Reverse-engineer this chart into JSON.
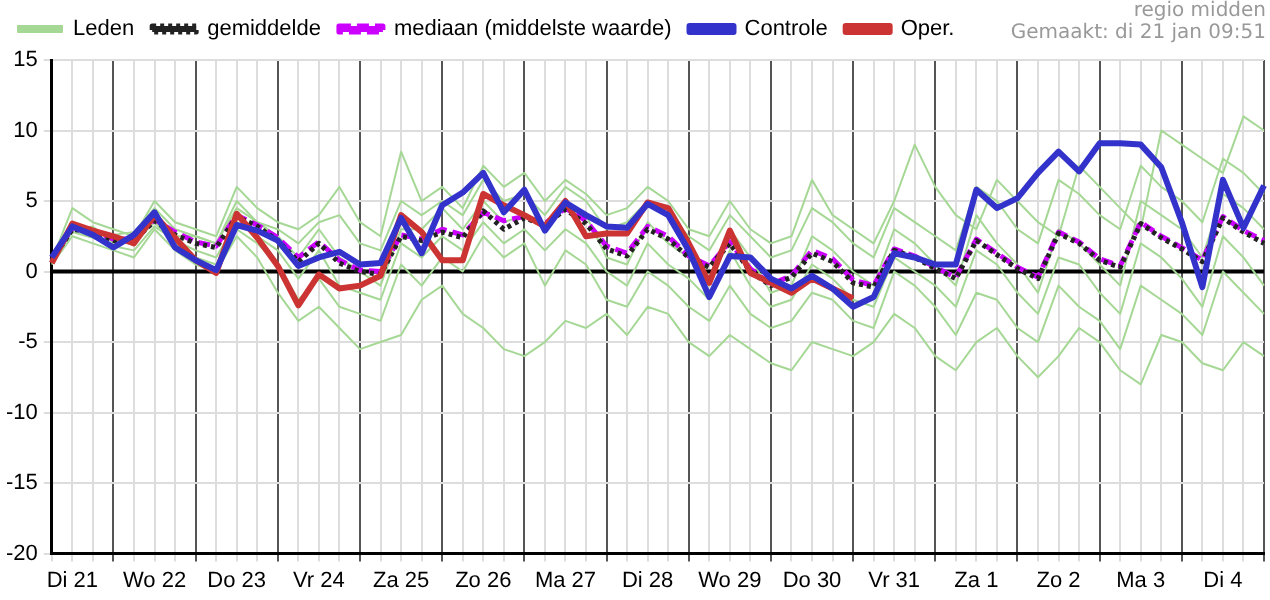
{
  "chart_data": {
    "type": "line",
    "annotations": [
      "regio midden",
      "Gemaakt: di 21 jan 09:51"
    ],
    "categories": [
      null,
      "Di 21",
      null,
      null,
      null,
      "Wo 22",
      null,
      null,
      null,
      "Do 23",
      null,
      null,
      null,
      "Vr 24",
      null,
      null,
      null,
      "Za 25",
      null,
      null,
      null,
      "Zo 26",
      null,
      null,
      null,
      "Ma 27",
      null,
      null,
      null,
      "Di 28",
      null,
      null,
      null,
      "Wo 29",
      null,
      null,
      null,
      "Do 30",
      null,
      null,
      null,
      "Vr 31",
      null,
      null,
      null,
      "Za 1",
      null,
      null,
      null,
      "Zo 2",
      null,
      null,
      null,
      "Ma 3",
      null,
      null,
      null,
      "Di 4",
      null,
      null
    ],
    "series": [
      {
        "name": "Leden",
        "color": "#a6d895",
        "values": [
          0.8,
          4.5,
          3.5,
          3.0,
          2.5,
          5.0,
          3.5,
          3.0,
          2.5,
          6.0,
          4.5,
          3.5,
          3.0,
          4.0,
          6.0,
          3.5,
          2.5,
          8.5,
          5.0,
          6.0,
          4.5,
          7.5,
          6.0,
          7.0,
          5.0,
          6.5,
          5.5,
          4.0,
          4.5,
          6.0,
          5.0,
          3.0,
          2.5,
          5.0,
          3.0,
          2.0,
          2.5,
          6.5,
          4.0,
          3.0,
          2.0,
          5.0,
          9.0,
          6.0,
          4.0,
          3.0,
          6.5,
          5.0,
          3.5,
          2.5,
          7.5,
          6.0,
          4.5,
          3.0,
          10.0,
          9.0,
          8.0,
          7.0,
          11.0,
          10.0
        ]
      },
      {
        "color": "#a6d895",
        "values": [
          0.5,
          2.5,
          2.0,
          1.5,
          1.0,
          3.0,
          1.5,
          0.5,
          0.0,
          2.5,
          1.0,
          -1.5,
          -3.5,
          -2.5,
          -4.0,
          -5.5,
          -5.0,
          -4.5,
          -2.0,
          -1.0,
          -3.0,
          -4.0,
          -5.5,
          -6.0,
          -5.0,
          -3.5,
          -4.0,
          -3.0,
          -4.5,
          -2.5,
          -3.0,
          -5.0,
          -6.0,
          -4.5,
          -5.5,
          -6.5,
          -7.0,
          -5.0,
          -5.5,
          -6.0,
          -5.0,
          -3.0,
          -4.0,
          -6.0,
          -7.0,
          -5.0,
          -4.0,
          -6.0,
          -7.5,
          -6.0,
          -4.0,
          -5.0,
          -7.0,
          -8.0,
          -4.5,
          -5.0,
          -6.5,
          -7.0,
          -5.0,
          -6.0
        ]
      },
      {
        "color": "#a6d895",
        "values": [
          1.0,
          3.0,
          3.2,
          2.0,
          2.5,
          4.0,
          2.5,
          2.5,
          2.0,
          5.0,
          3.5,
          2.5,
          1.0,
          3.0,
          1.0,
          0.0,
          -1.0,
          3.0,
          3.0,
          4.5,
          3.0,
          5.0,
          3.5,
          4.0,
          3.0,
          5.0,
          4.0,
          1.0,
          0.5,
          3.5,
          2.0,
          1.0,
          -1.0,
          3.0,
          1.0,
          -1.5,
          -1.0,
          2.5,
          1.5,
          0.0,
          -1.0,
          3.0,
          2.0,
          0.5,
          -1.0,
          4.0,
          2.0,
          0.5,
          -1.5,
          3.0,
          2.0,
          0.5,
          -1.0,
          5.0,
          4.0,
          3.0,
          1.0,
          5.5,
          4.5,
          3.0
        ]
      },
      {
        "color": "#a6d895",
        "values": [
          0.6,
          3.5,
          2.5,
          2.2,
          2.0,
          3.5,
          2.0,
          1.0,
          0.5,
          3.0,
          2.0,
          0.5,
          -2.0,
          -0.5,
          -2.5,
          -3.0,
          -3.5,
          0.5,
          -1.0,
          1.0,
          0.0,
          2.5,
          1.0,
          2.0,
          -1.0,
          1.5,
          0.5,
          -2.0,
          -2.5,
          0.0,
          -1.0,
          -2.5,
          -3.5,
          -1.0,
          -3.0,
          -4.0,
          -3.5,
          -1.5,
          -2.0,
          -3.5,
          -4.0,
          0.0,
          -1.0,
          -2.5,
          -4.5,
          -1.5,
          -2.0,
          -4.0,
          -5.0,
          -1.0,
          -2.5,
          -3.5,
          -5.5,
          -1.0,
          -2.0,
          -3.0,
          -4.5,
          0.0,
          -1.5,
          -3.0
        ]
      },
      {
        "color": "#a6d895",
        "values": [
          0.9,
          3.3,
          3.0,
          2.6,
          2.8,
          4.5,
          3.0,
          2.5,
          2.0,
          4.5,
          3.5,
          3.0,
          2.0,
          3.5,
          4.0,
          2.0,
          1.5,
          5.0,
          4.0,
          5.0,
          4.0,
          6.5,
          5.0,
          5.5,
          4.0,
          6.0,
          5.0,
          3.0,
          3.5,
          5.0,
          4.0,
          2.5,
          1.5,
          4.0,
          2.5,
          1.0,
          1.5,
          4.5,
          3.5,
          2.0,
          1.0,
          4.5,
          3.5,
          2.5,
          1.5,
          6.0,
          5.0,
          3.0,
          2.0,
          6.5,
          5.5,
          4.0,
          3.0,
          7.5,
          6.0,
          5.0,
          3.5,
          8.0,
          7.0,
          5.5
        ]
      },
      {
        "color": "#a6d895",
        "values": [
          0.7,
          2.8,
          2.4,
          1.8,
          1.5,
          3.2,
          2.2,
          1.5,
          1.0,
          3.5,
          2.5,
          1.5,
          -0.5,
          1.5,
          -1.0,
          -1.5,
          -2.0,
          2.0,
          1.0,
          2.5,
          1.5,
          3.5,
          2.0,
          3.0,
          1.5,
          3.0,
          2.0,
          0.0,
          -1.0,
          2.0,
          0.5,
          -0.5,
          -2.0,
          1.5,
          -1.0,
          -2.5,
          -2.0,
          0.5,
          -0.5,
          -2.0,
          -2.5,
          1.0,
          0.0,
          -1.0,
          -2.5,
          1.5,
          0.5,
          -1.5,
          -3.0,
          1.0,
          0.5,
          -1.5,
          -3.0,
          2.0,
          1.0,
          -0.5,
          -2.5,
          2.5,
          1.0,
          -1.0
        ]
      },
      {
        "name": "gemiddelde",
        "color": "#222222",
        "line_style": "dotted",
        "values": [
          0.8,
          3.0,
          2.8,
          2.2,
          2.2,
          3.6,
          2.6,
          2.0,
          1.7,
          3.9,
          3.2,
          2.2,
          0.7,
          2.0,
          0.6,
          0.0,
          -0.2,
          2.5,
          2.2,
          2.8,
          2.4,
          4.3,
          3.0,
          3.8,
          3.3,
          4.4,
          3.4,
          1.6,
          1.1,
          3.0,
          2.3,
          1.0,
          0.3,
          2.0,
          0.0,
          -1.0,
          -0.4,
          1.3,
          0.7,
          -0.8,
          -1.1,
          1.5,
          1.0,
          0.2,
          -0.5,
          2.2,
          1.2,
          0.2,
          -0.5,
          2.7,
          2.0,
          0.8,
          0.3,
          3.4,
          2.4,
          1.6,
          0.7,
          3.8,
          2.8,
          2.0
        ]
      },
      {
        "name": "mediaan (middelste waarde)",
        "color": "#cc00ff",
        "line_style": "dashed",
        "values": [
          0.8,
          3.1,
          2.9,
          2.3,
          2.3,
          3.7,
          2.8,
          2.1,
          1.8,
          4.0,
          3.3,
          2.4,
          1.0,
          2.1,
          0.8,
          0.1,
          0.0,
          2.6,
          2.3,
          3.0,
          2.6,
          4.2,
          3.6,
          3.9,
          3.4,
          4.5,
          3.6,
          1.8,
          1.3,
          3.2,
          2.5,
          1.1,
          0.4,
          2.1,
          0.2,
          -0.9,
          -0.3,
          1.5,
          0.9,
          -0.6,
          -1.0,
          1.6,
          1.1,
          0.3,
          -0.4,
          2.3,
          1.3,
          0.3,
          -0.4,
          2.8,
          2.1,
          0.9,
          0.4,
          3.5,
          2.5,
          1.7,
          0.8,
          3.9,
          2.9,
          2.2
        ]
      },
      {
        "name": "Controle",
        "color": "#3333cc",
        "values": [
          1.0,
          3.2,
          2.6,
          1.7,
          2.6,
          4.2,
          1.7,
          0.8,
          0.1,
          3.3,
          2.9,
          2.2,
          0.4,
          1.0,
          1.4,
          0.5,
          0.6,
          3.8,
          1.3,
          4.7,
          5.6,
          7.0,
          4.2,
          5.8,
          2.9,
          4.9,
          4.0,
          3.2,
          3.1,
          4.8,
          4.0,
          1.5,
          -1.8,
          1.1,
          1.0,
          -0.5,
          -1.2,
          -0.3,
          -1.2,
          -2.5,
          -1.8,
          1.3,
          1.0,
          0.5,
          0.5,
          5.8,
          4.5,
          5.2,
          7.0,
          8.5,
          7.1,
          9.1,
          9.1,
          9.0,
          7.4,
          3.5,
          -1.1,
          6.5,
          3.1,
          6.1
        ]
      },
      {
        "name": "Oper.",
        "color": "#cc3333",
        "values": [
          0.6,
          3.4,
          2.9,
          2.5,
          2.0,
          4.0,
          2.4,
          0.8,
          -0.1,
          4.1,
          2.4,
          0.4,
          -2.4,
          -0.2,
          -1.2,
          -1.0,
          -0.3,
          4.0,
          2.8,
          0.8,
          0.8,
          5.5,
          4.7,
          4.0,
          3.2,
          5.0,
          2.5,
          2.7,
          2.7,
          4.9,
          4.5,
          2.0,
          -0.8,
          2.9,
          -0.1,
          -0.8,
          -1.5,
          -0.5,
          -1.2,
          -1.9,
          null,
          null,
          null,
          null,
          null,
          null,
          null,
          null,
          null,
          null,
          null,
          null,
          null,
          null,
          null,
          null,
          null,
          null,
          null,
          null
        ]
      }
    ],
    "ylim": [
      -20,
      15
    ],
    "yticks": [
      -20,
      -15,
      -10,
      -5,
      0,
      5,
      10,
      15
    ],
    "ref_lines": [
      {
        "axis": "y",
        "value": 0,
        "color": "#000000"
      }
    ],
    "grid": true,
    "legend": "top",
    "marker": "none"
  }
}
